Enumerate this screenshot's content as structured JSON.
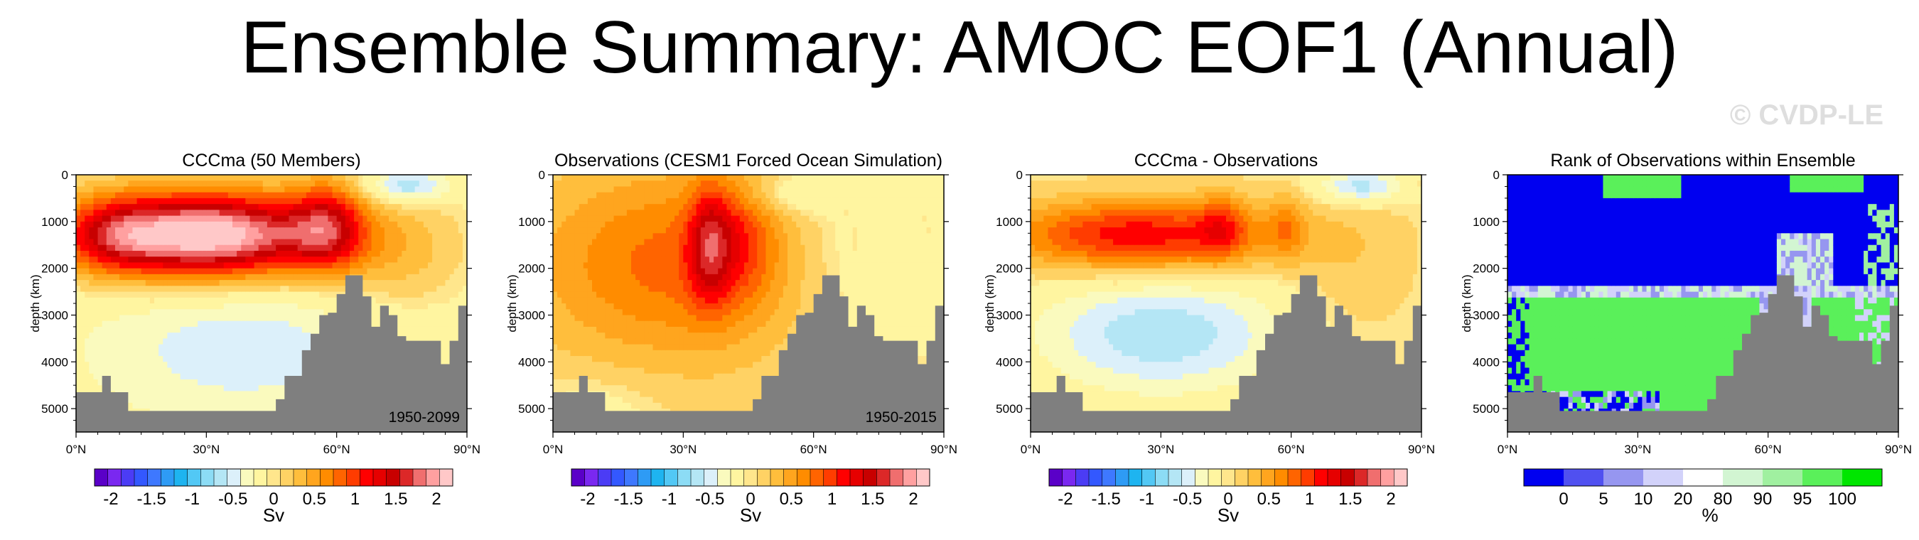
{
  "page": {
    "title": "Ensemble Summary: AMOC EOF1 (Annual)",
    "watermark": "© CVDP-LE"
  },
  "colors": {
    "land": "#7f7f7f",
    "sv_scale": [
      "#5a00c8",
      "#7a28f0",
      "#4b3cf5",
      "#3358ff",
      "#3e78ff",
      "#2e9bf5",
      "#1eb4f0",
      "#52c8f5",
      "#8cdcf5",
      "#b4e6f5",
      "#dcf0fa",
      "#fafabe",
      "#fff5a0",
      "#ffe68c",
      "#ffd264",
      "#ffbe3c",
      "#ffa51e",
      "#ff8c00",
      "#ff6400",
      "#ff3c00",
      "#ff0000",
      "#e60000",
      "#c80000",
      "#dc2828",
      "#f06e6e",
      "#ffa0a0",
      "#ffc8c8"
    ],
    "rank_scale": [
      "#0000f0",
      "#5050f0",
      "#9696f0",
      "#d2d2fa",
      "#ffffff",
      "#d2f5d2",
      "#a0f0a0",
      "#5af05a",
      "#00e600"
    ]
  },
  "chart_data": [
    {
      "type": "heatmap",
      "title": "CCCma (50 Members)",
      "period_label": "1950-2099",
      "ylabel": "depth (km)",
      "xlim": [
        0,
        90
      ],
      "ylim": [
        5500,
        0
      ],
      "xticks": [
        "0°N",
        "30°N",
        "60°N",
        "90°N"
      ],
      "yticks": [
        "0",
        "1000",
        "2000",
        "3000",
        "4000",
        "5000"
      ],
      "field": {
        "base": -0.05,
        "blobs": [
          {
            "lat": 30,
            "dep": 1300,
            "slat": 20,
            "sdep": 650,
            "amp": 2.4
          },
          {
            "lat": 58,
            "dep": 1100,
            "slat": 6,
            "sdep": 700,
            "amp": 1.0
          },
          {
            "lat": 8,
            "dep": 1300,
            "slat": 8,
            "sdep": 600,
            "amp": 0.6
          },
          {
            "lat": 38,
            "dep": 3700,
            "slat": 28,
            "sdep": 1300,
            "amp": -0.45
          },
          {
            "lat": 75,
            "dep": 1800,
            "slat": 10,
            "sdep": 900,
            "amp": 0.35
          },
          {
            "lat": 76,
            "dep": 250,
            "slat": 7,
            "sdep": 250,
            "amp": -0.7
          }
        ]
      },
      "colorbar": {
        "ticks": [
          "-2",
          "-1.5",
          "-1",
          "-0.5",
          "0",
          "0.5",
          "1",
          "1.5",
          "2"
        ],
        "unit": "Sv"
      }
    },
    {
      "type": "heatmap",
      "title": "Observations (CESM1 Forced Ocean Simulation)",
      "period_label": "1950-2015",
      "ylabel": "depth (km)",
      "xlim": [
        0,
        90
      ],
      "ylim": [
        5500,
        0
      ],
      "xticks": [
        "0°N",
        "30°N",
        "60°N",
        "90°N"
      ],
      "yticks": [
        "0",
        "1000",
        "2000",
        "3000",
        "4000",
        "5000"
      ],
      "field": {
        "base": 0.05,
        "blobs": [
          {
            "lat": 28,
            "dep": 1900,
            "slat": 24,
            "sdep": 1500,
            "amp": 0.75
          },
          {
            "lat": 36,
            "dep": 1500,
            "slat": 3.5,
            "sdep": 900,
            "amp": 0.8
          },
          {
            "lat": 43,
            "dep": 1400,
            "slat": 6,
            "sdep": 900,
            "amp": 0.5
          },
          {
            "lat": 72,
            "dep": 1700,
            "slat": 14,
            "sdep": 1500,
            "amp": -0.3
          },
          {
            "lat": 55,
            "dep": 400,
            "slat": 8,
            "sdep": 300,
            "amp": -0.35
          },
          {
            "lat": 10,
            "dep": 5000,
            "slat": 10,
            "sdep": 500,
            "amp": -0.2
          }
        ]
      },
      "colorbar": {
        "ticks": [
          "-2",
          "-1.5",
          "-1",
          "-0.5",
          "0",
          "0.5",
          "1",
          "1.5",
          "2"
        ],
        "unit": "Sv"
      }
    },
    {
      "type": "heatmap",
      "title": "CCCma - Observations",
      "period_label": "",
      "ylabel": "depth (km)",
      "xlim": [
        0,
        90
      ],
      "ylim": [
        5500,
        0
      ],
      "xticks": [
        "0°N",
        "30°N",
        "60°N",
        "90°N"
      ],
      "yticks": [
        "0",
        "1000",
        "2000",
        "3000",
        "4000",
        "5000"
      ],
      "field": {
        "base": 0.0,
        "blobs": [
          {
            "lat": 25,
            "dep": 1300,
            "slat": 22,
            "sdep": 550,
            "amp": 1.2
          },
          {
            "lat": 44,
            "dep": 1100,
            "slat": 4,
            "sdep": 500,
            "amp": 0.5
          },
          {
            "lat": 59,
            "dep": 1100,
            "slat": 3,
            "sdep": 500,
            "amp": 0.4
          },
          {
            "lat": 30,
            "dep": 3400,
            "slat": 20,
            "sdep": 900,
            "amp": -0.7
          },
          {
            "lat": 75,
            "dep": 2000,
            "slat": 10,
            "sdep": 1200,
            "amp": 0.2
          },
          {
            "lat": 76,
            "dep": 250,
            "slat": 7,
            "sdep": 250,
            "amp": -0.7
          }
        ]
      },
      "colorbar": {
        "ticks": [
          "-2",
          "-1.5",
          "-1",
          "-0.5",
          "0",
          "0.5",
          "1",
          "1.5",
          "2"
        ],
        "unit": "Sv"
      }
    },
    {
      "type": "heatmap",
      "title": "Rank of Observations within Ensemble",
      "period_label": "",
      "ylabel": "depth (km)",
      "xlim": [
        0,
        90
      ],
      "ylim": [
        5500,
        0
      ],
      "xticks": [
        "0°N",
        "30°N",
        "60°N",
        "90°N"
      ],
      "yticks": [
        "0",
        "1000",
        "2000",
        "3000",
        "4000",
        "5000"
      ],
      "field": {
        "note": "upper 0-2400 m mostly 0-5 percentile (blue); 2400-5000 m mostly 95-100 percentile (green); 60-90N mixed"
      },
      "colorbar": {
        "ticks": [
          "0",
          "5",
          "10",
          "20",
          "80",
          "90",
          "95",
          "100"
        ],
        "unit": "%"
      }
    }
  ],
  "bathymetry_depths": [
    4650,
    4650,
    4650,
    4650,
    4650,
    4650,
    4300,
    4300,
    4650,
    4650,
    4650,
    4650,
    5050,
    5050,
    5050,
    5050,
    5050,
    5050,
    5050,
    5050,
    5050,
    5050,
    5050,
    5050,
    5050,
    5050,
    5050,
    5050,
    5050,
    5050,
    5050,
    5050,
    5050,
    5050,
    5050,
    5050,
    5050,
    5050,
    5050,
    5050,
    5050,
    5050,
    5050,
    5050,
    5050,
    5050,
    4800,
    4800,
    4300,
    4300,
    4300,
    4300,
    3750,
    3750,
    3400,
    3400,
    3000,
    3000,
    2950,
    2950,
    2550,
    2550,
    2150,
    2150,
    2150,
    2150,
    2600,
    2600,
    3250,
    3250,
    2800,
    2800,
    3000,
    3000,
    3450,
    3450,
    3550,
    3550,
    3550,
    3550,
    3550,
    3550,
    3550,
    3550,
    4050,
    4050,
    3550,
    3550,
    2800,
    2800
  ]
}
